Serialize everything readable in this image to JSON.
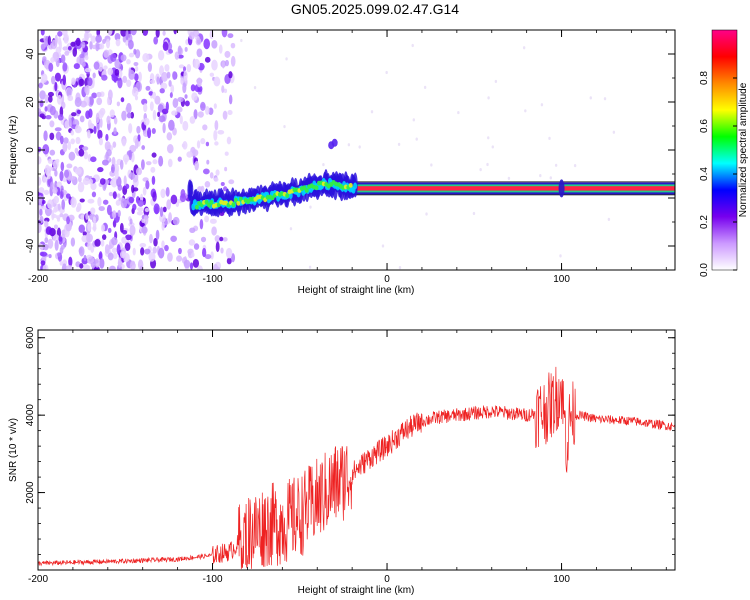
{
  "title": "GN05.2025.099.02.47.G14",
  "chart_data": [
    {
      "type": "heatmap",
      "xlabel": "Height of straight line (km)",
      "ylabel": "Frequency (Hz)",
      "xlim": [
        -200,
        165
      ],
      "ylim": [
        -50,
        50
      ],
      "x_ticks": [
        -200,
        -100,
        0,
        100
      ],
      "y_ticks": [
        -40,
        -20,
        0,
        20,
        40
      ],
      "colorbar": {
        "label": "Normalized spectral amplitude",
        "range": [
          0,
          1
        ],
        "ticks": [
          "0.0",
          "0.2",
          "0.4",
          "0.6",
          "0.8"
        ],
        "colors": [
          "#ffffff",
          "#cc99ff",
          "#7700ee",
          "#0000ff",
          "#00ffff",
          "#00ff00",
          "#ffff00",
          "#ff8800",
          "#ff0000",
          "#ff0088"
        ]
      },
      "features": {
        "noise_region_x": [
          -200,
          -88
        ],
        "signal_start_x": -113,
        "signal_track": [
          {
            "x": -112,
            "freq": -23
          },
          {
            "x": -90,
            "freq": -22
          },
          {
            "x": -70,
            "freq": -20
          },
          {
            "x": -50,
            "freq": -17
          },
          {
            "x": -35,
            "freq": -14
          },
          {
            "x": -25,
            "freq": -15
          },
          {
            "x": -15,
            "freq": -16
          },
          {
            "x": 0,
            "freq": -16
          },
          {
            "x": 50,
            "freq": -16
          },
          {
            "x": 100,
            "freq": -16
          },
          {
            "x": 165,
            "freq": -16
          }
        ]
      },
      "grid": false
    },
    {
      "type": "line",
      "xlabel": "Height of straight line (km)",
      "ylabel": "SNR (10 * v/v)",
      "xlim": [
        -200,
        165
      ],
      "ylim": [
        0,
        6200
      ],
      "x_ticks": [
        -200,
        -100,
        0,
        100
      ],
      "y_ticks": [
        2000,
        4000,
        6000
      ],
      "color": "#ee2222",
      "series": [
        {
          "x": [
            -200,
            -150,
            -120,
            -100,
            -90,
            -80,
            -70,
            -60,
            -50,
            -40,
            -30,
            -20,
            -10,
            0,
            10,
            20,
            30,
            40,
            50,
            60,
            70,
            80,
            90,
            95,
            100,
            103,
            105,
            110,
            120,
            140,
            165
          ],
          "values": [
            170,
            230,
            280,
            380,
            480,
            900,
            1150,
            1200,
            1400,
            1800,
            2200,
            2500,
            2900,
            3200,
            3600,
            3850,
            3950,
            4000,
            4050,
            4100,
            4050,
            4000,
            4100,
            4300,
            4700,
            3200,
            4000,
            4000,
            3900,
            3850,
            3700
          ]
        }
      ],
      "grid": false
    }
  ]
}
